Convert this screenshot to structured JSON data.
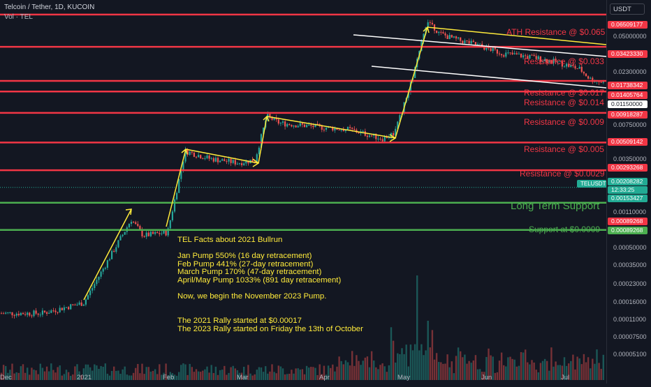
{
  "header": {
    "symbol": "Telcoin / Tether, 1D, KUCOIN",
    "volume_label": "Vol · TEL"
  },
  "price_axis": {
    "currency": "USDT",
    "ticks": [
      "0.05000000",
      "0.02300000",
      "0.00750000",
      "0.00350000",
      "0.00110000",
      "0.00050000",
      "0.00035000",
      "0.00023000",
      "0.00016000",
      "0.00011000",
      "0.00007500",
      "0.00005100"
    ],
    "price_labels": [
      {
        "value": "0.06509177",
        "color": "#f23645"
      },
      {
        "value": "0.03423330",
        "color": "#f23645"
      },
      {
        "value": "0.01738342",
        "color": "#f23645"
      },
      {
        "value": "0.01405764",
        "color": "#f23645"
      },
      {
        "value": "0.01150000",
        "color": "#ffffff"
      },
      {
        "value": "0.00918287",
        "color": "#f23645"
      },
      {
        "value": "0.00509142",
        "color": "#f23645"
      },
      {
        "value": "0.00293268",
        "color": "#f23645"
      },
      {
        "value": "0.00208282",
        "color": "#22ab94"
      },
      {
        "value": "0.00153427",
        "color": "#22ab94"
      },
      {
        "value": "0.00089268",
        "color": "#f23645"
      },
      {
        "value": "0.00089268",
        "color": "#4caf50"
      }
    ],
    "last_price": {
      "symbol": "TELUSDT",
      "value": "0.00208282",
      "countdown": "12:33:25"
    }
  },
  "levels": [
    {
      "name": "ath",
      "label": "ATH Resistance @ $0.065",
      "color": "#f23645"
    },
    {
      "name": "r033",
      "label": "Resistance @ $0.033",
      "color": "#f23645"
    },
    {
      "name": "r017",
      "label": "Resistance @ $0.017",
      "color": "#f23645"
    },
    {
      "name": "r014",
      "label": "Resistance @ $0.014",
      "color": "#f23645"
    },
    {
      "name": "r009",
      "label": "Resistance @ $0.009",
      "color": "#f23645"
    },
    {
      "name": "r005",
      "label": "Resistance @ $0.005",
      "color": "#f23645"
    },
    {
      "name": "r0029",
      "label": "Resistance @ $0.0029",
      "color": "#f23645"
    },
    {
      "name": "lts",
      "label": "Long Term Support",
      "color": "#4caf50"
    },
    {
      "name": "s0009",
      "label": "Support at $0.0009",
      "color": "#4caf50"
    }
  ],
  "facts": {
    "title": "TEL Facts about 2021 Bullrun",
    "jan": "Jan Pump 550% (16 day retracement)",
    "feb": "Feb Pump 441% (27-day retracement)",
    "mar": "March Pump 170% (47-day retracement)",
    "aprmay": "April/May Pump 1033% (891 day retracement)",
    "now": "Now, we begin the November 2023 Pump.",
    "rally2021": "The 2021 Rally started at $0.00017",
    "rally2023": "The 2023 Rally started on Friday the 13th of October"
  },
  "x_axis": {
    "labels": [
      "Dec",
      "2021",
      "Feb",
      "Mar",
      "Apr",
      "May",
      "Jun",
      "Jul"
    ]
  },
  "chart_data": {
    "type": "candlestick",
    "symbol": "TELUSDT",
    "timeframe": "1D",
    "exchange": "KUCOIN",
    "y_scale": "log",
    "ylim": [
      4.5e-05,
      0.08
    ],
    "horizontal_levels": [
      {
        "price": 0.06509177,
        "label": "ATH Resistance @ $0.065",
        "color": "#f23645"
      },
      {
        "price": 0.0342333,
        "label": "Resistance @ $0.033",
        "color": "#f23645"
      },
      {
        "price": 0.01738342,
        "label": "Resistance @ $0.017",
        "color": "#f23645"
      },
      {
        "price": 0.01405764,
        "label": "Resistance @ $0.014",
        "color": "#f23645"
      },
      {
        "price": 0.00918287,
        "label": "Resistance @ $0.009",
        "color": "#f23645"
      },
      {
        "price": 0.00509142,
        "label": "Resistance @ $0.005",
        "color": "#f23645"
      },
      {
        "price": 0.00293268,
        "label": "Resistance @ $0.0029",
        "color": "#f23645"
      },
      {
        "price": 0.00153427,
        "label": "Long Term Support",
        "color": "#4caf50"
      },
      {
        "price": 0.00089268,
        "label": "Support at $0.0009",
        "color": "#4caf50"
      }
    ],
    "last_price": 0.00208282,
    "price_path": [
      [
        0,
        0.00017
      ],
      [
        60,
        0.00017
      ],
      [
        120,
        0.00021
      ],
      [
        188,
        0.0011
      ],
      [
        205,
        0.0008
      ],
      [
        240,
        0.00085
      ],
      [
        265,
        0.0043
      ],
      [
        300,
        0.0037
      ],
      [
        340,
        0.0034
      ],
      [
        365,
        0.0036
      ],
      [
        382,
        0.0086
      ],
      [
        400,
        0.0075
      ],
      [
        450,
        0.007
      ],
      [
        500,
        0.0066
      ],
      [
        548,
        0.0055
      ],
      [
        565,
        0.0062
      ],
      [
        585,
        0.014
      ],
      [
        600,
        0.03
      ],
      [
        612,
        0.06
      ],
      [
        628,
        0.045
      ],
      [
        650,
        0.04
      ],
      [
        680,
        0.036
      ],
      [
        720,
        0.03
      ],
      [
        760,
        0.028
      ],
      [
        800,
        0.025
      ],
      [
        830,
        0.022
      ],
      [
        845,
        0.018
      ],
      [
        862,
        0.017
      ]
    ],
    "colors": {
      "up": "#26a69a",
      "down": "#ef5350",
      "annotation": "#ffeb3b"
    }
  }
}
